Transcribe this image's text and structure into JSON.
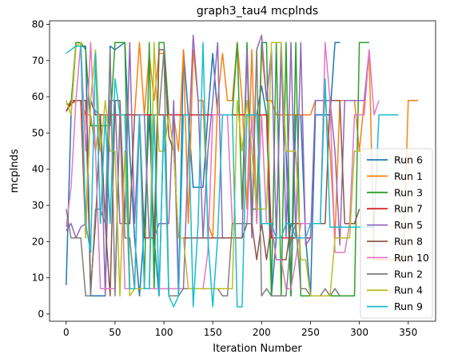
{
  "chart_data": {
    "type": "line",
    "title": "graph3_tau4 mcplnds",
    "xlabel": "Iteration Number",
    "ylabel": "mcplnds",
    "xlim": [
      -17,
      378
    ],
    "ylim": [
      -2,
      81
    ],
    "xticks": [
      0,
      50,
      100,
      150,
      200,
      250,
      300,
      350
    ],
    "yticks": [
      0,
      10,
      20,
      30,
      40,
      50,
      60,
      70,
      80
    ],
    "grid": false,
    "legend_position": "lower-right",
    "series": [
      {
        "name": "Run 6",
        "color": "#1f77b4",
        "x": [
          0,
          5,
          10,
          15,
          20,
          25,
          30,
          35,
          40,
          45,
          50,
          55,
          60,
          65,
          70,
          75,
          80,
          85,
          90,
          95,
          100,
          105,
          110,
          115,
          120,
          125,
          130,
          135,
          140,
          145,
          150,
          155,
          160,
          165,
          170,
          175,
          180,
          185,
          190,
          195,
          200,
          205,
          210,
          215,
          220,
          225,
          230,
          235,
          240,
          245,
          250,
          255,
          260,
          265,
          270,
          275,
          280
        ],
        "y": [
          8,
          55,
          74,
          74,
          74,
          5,
          5,
          5,
          5,
          74,
          73,
          74,
          75,
          45,
          21,
          5,
          24,
          55,
          21,
          5,
          55,
          55,
          55,
          5,
          73,
          55,
          35,
          35,
          35,
          55,
          72,
          55,
          55,
          55,
          55,
          55,
          55,
          55,
          55,
          55,
          63,
          55,
          5,
          21,
          72,
          45,
          5,
          55,
          55,
          21,
          5,
          55,
          55,
          55,
          55,
          75,
          75
        ]
      },
      {
        "name": "Run 1",
        "color": "#ff7f0e",
        "x": [
          0,
          5,
          10,
          15,
          20,
          25,
          30,
          35,
          40,
          45,
          50,
          55,
          60,
          65,
          70,
          75,
          80,
          85,
          90,
          95,
          100,
          105,
          110,
          115,
          120,
          125,
          130,
          135,
          140,
          145,
          150,
          155,
          160,
          165,
          170,
          175,
          180,
          185,
          190,
          195,
          200,
          205,
          210,
          215,
          220,
          225,
          230,
          235,
          240,
          245,
          250,
          255,
          260,
          265,
          270,
          275,
          280,
          285,
          290,
          295,
          300,
          305,
          310,
          315,
          320,
          325,
          330,
          335,
          340,
          345,
          350,
          355,
          360
        ],
        "y": [
          56,
          58,
          59,
          59,
          55,
          55,
          45,
          55,
          55,
          55,
          55,
          55,
          55,
          55,
          55,
          75,
          55,
          72,
          59,
          72,
          72,
          55,
          55,
          45,
          73,
          25,
          73,
          59,
          59,
          25,
          21,
          59,
          72,
          59,
          59,
          75,
          59,
          29,
          73,
          25,
          73,
          59,
          59,
          55,
          55,
          55,
          55,
          55,
          55,
          55,
          55,
          59,
          59,
          59,
          45,
          21,
          59,
          59,
          59,
          59,
          45,
          59,
          72,
          15,
          15,
          15,
          15,
          15,
          15,
          15,
          59,
          59,
          59
        ]
      },
      {
        "name": "Run 3",
        "color": "#2ca02c",
        "x": [
          0,
          5,
          10,
          15,
          20,
          25,
          30,
          35,
          40,
          45,
          50,
          55,
          60,
          65,
          70,
          75,
          80,
          85,
          90,
          95,
          100,
          105,
          110,
          115,
          120,
          125,
          130,
          135,
          140,
          145,
          150,
          155,
          160,
          165,
          170,
          175,
          180,
          185,
          190,
          195,
          200,
          205,
          210,
          215,
          220,
          225,
          230,
          235,
          240,
          245,
          250,
          255,
          260,
          265,
          270,
          275,
          280,
          285,
          290,
          295,
          300,
          305,
          310
        ],
        "y": [
          58,
          58,
          75,
          75,
          73,
          52,
          52,
          52,
          52,
          52,
          75,
          75,
          75,
          7,
          7,
          7,
          7,
          75,
          7,
          75,
          75,
          55,
          55,
          55,
          55,
          55,
          55,
          55,
          55,
          55,
          55,
          55,
          55,
          55,
          55,
          75,
          29,
          75,
          29,
          29,
          75,
          75,
          5,
          75,
          5,
          75,
          5,
          75,
          5,
          5,
          5,
          5,
          5,
          5,
          5,
          5,
          5,
          5,
          5,
          5,
          75,
          75,
          75
        ]
      },
      {
        "name": "Run 7",
        "color": "#d62728",
        "x": [
          0,
          5,
          10,
          15,
          20,
          25,
          30,
          35,
          40,
          45,
          50,
          55,
          60,
          65,
          70,
          75,
          80,
          85,
          90,
          95,
          100,
          105,
          110,
          115,
          120,
          125,
          130,
          135,
          140,
          145,
          150,
          155,
          160,
          165,
          170,
          175,
          180,
          185,
          190,
          195,
          200,
          205,
          210,
          215,
          220,
          225,
          230,
          235,
          240,
          245,
          250
        ],
        "y": [
          56,
          58,
          59,
          59,
          21,
          59,
          55,
          55,
          55,
          55,
          55,
          55,
          55,
          55,
          55,
          55,
          55,
          55,
          55,
          55,
          55,
          55,
          55,
          55,
          55,
          55,
          55,
          55,
          55,
          55,
          55,
          55,
          55,
          55,
          55,
          55,
          55,
          55,
          55,
          55,
          55,
          55,
          21,
          21,
          21,
          21,
          21,
          21,
          21,
          21,
          21
        ]
      },
      {
        "name": "Run 5",
        "color": "#9467bd",
        "x": [
          0,
          5,
          10,
          15,
          20,
          25,
          30,
          35,
          40,
          45,
          50,
          55,
          60,
          65,
          70,
          75,
          80,
          85,
          90,
          95,
          100,
          105,
          110,
          115,
          120,
          125,
          130,
          135,
          140,
          145,
          150,
          155,
          160,
          165,
          170,
          175,
          180,
          185,
          190,
          195,
          200,
          205,
          210,
          215,
          220,
          225,
          230,
          235,
          240,
          245,
          250,
          255,
          260,
          265,
          270,
          275,
          280,
          285,
          290,
          295,
          300,
          305,
          310
        ],
        "y": [
          23,
          25,
          21,
          24,
          25,
          59,
          56,
          55,
          5,
          59,
          59,
          25,
          25,
          75,
          25,
          55,
          55,
          21,
          21,
          25,
          25,
          25,
          59,
          7,
          7,
          45,
          77,
          59,
          21,
          45,
          59,
          75,
          21,
          21,
          21,
          21,
          21,
          73,
          21,
          73,
          77,
          59,
          73,
          21,
          75,
          21,
          75,
          21,
          75,
          19,
          21,
          59,
          59,
          59,
          59,
          45,
          19,
          59,
          59,
          59,
          59,
          59,
          73
        ]
      },
      {
        "name": "Run 8",
        "color": "#8c564b",
        "x": [
          0,
          5,
          10,
          15,
          20,
          25,
          30,
          35,
          40,
          45,
          50,
          55,
          60,
          65,
          70,
          75,
          80,
          85,
          90,
          95,
          100,
          105,
          110,
          115,
          120,
          125,
          130,
          135,
          140,
          145,
          150,
          155,
          160,
          165,
          170,
          175,
          180,
          185,
          190,
          195,
          200,
          205,
          210,
          215,
          220,
          225,
          230,
          235,
          240,
          245,
          250,
          255,
          260,
          265,
          270,
          275,
          280,
          285,
          290,
          295,
          300
        ],
        "y": [
          56,
          59,
          59,
          59,
          59,
          7,
          25,
          55,
          25,
          5,
          59,
          59,
          25,
          25,
          55,
          55,
          21,
          21,
          21,
          73,
          73,
          49,
          45,
          21,
          21,
          21,
          21,
          21,
          21,
          21,
          21,
          21,
          21,
          21,
          21,
          21,
          21,
          25,
          25,
          15,
          25,
          15,
          25,
          15,
          15,
          15,
          25,
          25,
          25,
          25,
          25,
          25,
          25,
          25,
          59,
          59,
          59,
          25,
          25,
          25,
          29
        ]
      },
      {
        "name": "Run 10",
        "color": "#e377c2",
        "x": [
          0,
          5,
          10,
          15,
          20,
          25,
          30,
          35,
          40,
          45,
          50,
          55,
          60,
          65,
          70,
          75,
          80,
          85,
          90,
          95,
          100,
          105,
          110,
          115,
          120,
          125,
          130,
          135,
          140,
          145,
          150,
          155,
          160,
          165,
          170,
          175,
          180,
          185,
          190,
          195,
          200,
          205,
          210,
          215,
          220,
          225,
          230,
          235,
          240,
          245,
          250,
          255,
          260,
          265,
          270,
          275,
          280,
          285,
          290,
          295,
          300,
          305,
          310,
          315,
          320
        ],
        "y": [
          24,
          35,
          59,
          75,
          45,
          75,
          45,
          7,
          7,
          7,
          7,
          55,
          7,
          7,
          7,
          55,
          7,
          7,
          7,
          7,
          7,
          7,
          7,
          7,
          7,
          7,
          7,
          7,
          7,
          17,
          55,
          55,
          55,
          55,
          25,
          25,
          25,
          25,
          55,
          25,
          55,
          25,
          25,
          15,
          15,
          7,
          7,
          15,
          25,
          25,
          25,
          25,
          25,
          75,
          59,
          17,
          17,
          17,
          25,
          55,
          55,
          55,
          73,
          55,
          59
        ]
      },
      {
        "name": "Run 2",
        "color": "#7f7f7f",
        "x": [
          0,
          5,
          10,
          15,
          20,
          25,
          30,
          35,
          40,
          45,
          50,
          55,
          60,
          65,
          70,
          75,
          80,
          85,
          90,
          95,
          100,
          105,
          110,
          115,
          120,
          125,
          130,
          135,
          140,
          145,
          150,
          155,
          160,
          165,
          170,
          175,
          180,
          185,
          190,
          195,
          200,
          205,
          210,
          215,
          220,
          225,
          230,
          235,
          240,
          245,
          250,
          255,
          260,
          265,
          270,
          275,
          280
        ],
        "y": [
          29,
          21,
          21,
          21,
          5,
          5,
          29,
          29,
          25,
          73,
          5,
          55,
          21,
          21,
          7,
          7,
          7,
          7,
          55,
          55,
          73,
          5,
          5,
          5,
          7,
          7,
          7,
          7,
          7,
          7,
          7,
          7,
          5,
          5,
          25,
          25,
          25,
          25,
          25,
          73,
          5,
          7,
          5,
          5,
          5,
          5,
          21,
          25,
          7,
          7,
          5,
          5,
          5,
          7,
          5,
          7,
          5
        ]
      },
      {
        "name": "Run 4",
        "color": "#bcbd22",
        "x": [
          0,
          5,
          10,
          15,
          20,
          25,
          30,
          35,
          40,
          45,
          50,
          55,
          60,
          65,
          70,
          75,
          80,
          85,
          90,
          95,
          100,
          105,
          110,
          115,
          120,
          125,
          130,
          135,
          140,
          145,
          150,
          155,
          160,
          165,
          170,
          175,
          180,
          185,
          190,
          195,
          200,
          205,
          210,
          215,
          220,
          225,
          230,
          235,
          240,
          245,
          250,
          255,
          260,
          265,
          270,
          275,
          280,
          285,
          290,
          295,
          300,
          305
        ],
        "y": [
          59,
          55,
          74,
          75,
          21,
          59,
          73,
          45,
          59,
          45,
          45,
          5,
          45,
          5,
          7,
          7,
          7,
          7,
          75,
          45,
          45,
          55,
          45,
          21,
          21,
          7,
          7,
          7,
          7,
          7,
          7,
          7,
          7,
          7,
          7,
          59,
          45,
          59,
          45,
          29,
          29,
          29,
          75,
          75,
          75,
          45,
          45,
          45,
          15,
          15,
          5,
          5,
          5,
          5,
          5,
          21,
          21,
          21,
          21,
          45,
          45,
          45
        ]
      },
      {
        "name": "Run 9",
        "color": "#17becf",
        "x": [
          0,
          5,
          10,
          15,
          20,
          25,
          30,
          35,
          40,
          45,
          50,
          55,
          60,
          65,
          70,
          75,
          80,
          85,
          90,
          95,
          100,
          105,
          110,
          115,
          120,
          125,
          130,
          135,
          140,
          145,
          150,
          155,
          160,
          165,
          170,
          175,
          180,
          185,
          190,
          195,
          200,
          205,
          210,
          215,
          220,
          225,
          230,
          235,
          240,
          245,
          250,
          255,
          260,
          265,
          270,
          275,
          280,
          285,
          290,
          295,
          300,
          305,
          310,
          315,
          320,
          325,
          330,
          335,
          340
        ],
        "y": [
          72,
          73,
          74,
          74,
          25,
          17,
          72,
          25,
          55,
          25,
          65,
          55,
          55,
          7,
          7,
          55,
          7,
          7,
          55,
          5,
          55,
          5,
          2,
          5,
          55,
          55,
          2,
          25,
          75,
          21,
          2,
          21,
          55,
          55,
          55,
          2,
          2,
          55,
          55,
          55,
          25,
          25,
          25,
          21,
          21,
          25,
          25,
          21,
          21,
          21,
          25,
          25,
          25,
          65,
          24,
          24,
          24,
          24,
          24,
          24,
          24,
          24,
          24,
          24,
          55,
          55,
          55,
          55,
          55
        ]
      }
    ]
  }
}
